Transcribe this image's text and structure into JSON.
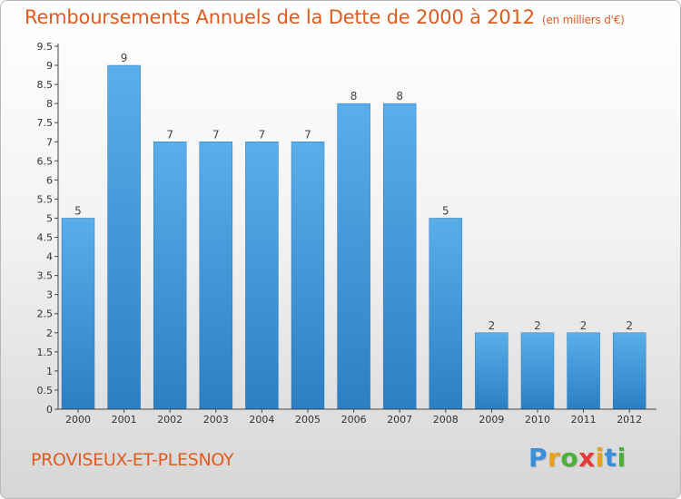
{
  "header": {
    "title": "Remboursements Annuels de la Dette de 2000 à 2012",
    "unit": "(en milliers d'€)"
  },
  "footer": {
    "commune": "PROVISEUX-ET-PLESNOY",
    "brand": {
      "letters": [
        "P",
        "r",
        "o",
        "x",
        "i",
        "t",
        "i"
      ],
      "colors": [
        "#3a8fd8",
        "#e8a21a",
        "#4caf3a",
        "#e53935",
        "#e8a21a",
        "#3a8fd8",
        "#4caf3a"
      ]
    }
  },
  "colors": {
    "bar_top": "#5aaeea",
    "bar_bottom": "#2c7fc3",
    "title": "#e15a1e",
    "axis": "#444444"
  },
  "chart_data": {
    "type": "bar",
    "title": "Remboursements Annuels de la Dette de 2000 à 2012",
    "categories": [
      "2000",
      "2001",
      "2002",
      "2003",
      "2004",
      "2005",
      "2006",
      "2007",
      "2008",
      "2009",
      "2010",
      "2011",
      "2012"
    ],
    "values": [
      5,
      9,
      7,
      7,
      7,
      7,
      8,
      8,
      5,
      2,
      2,
      2,
      2
    ],
    "data_labels": [
      "5",
      "9",
      "7",
      "7",
      "7",
      "7",
      "8",
      "8",
      "5",
      "2",
      "2",
      "2",
      "2"
    ],
    "ylim": [
      0,
      9.5
    ],
    "yticks": [
      "0",
      "0.5",
      "1",
      "1.5",
      "2",
      "2.5",
      "3",
      "3.5",
      "4",
      "4.5",
      "5",
      "5.5",
      "6",
      "6.5",
      "7",
      "7.5",
      "8",
      "8.5",
      "9",
      "9.5"
    ],
    "ytick_values": [
      0,
      0.5,
      1,
      1.5,
      2,
      2.5,
      3,
      3.5,
      4,
      4.5,
      5,
      5.5,
      6,
      6.5,
      7,
      7.5,
      8,
      8.5,
      9,
      9.5
    ],
    "grid": false,
    "xlabel": "",
    "ylabel": ""
  }
}
